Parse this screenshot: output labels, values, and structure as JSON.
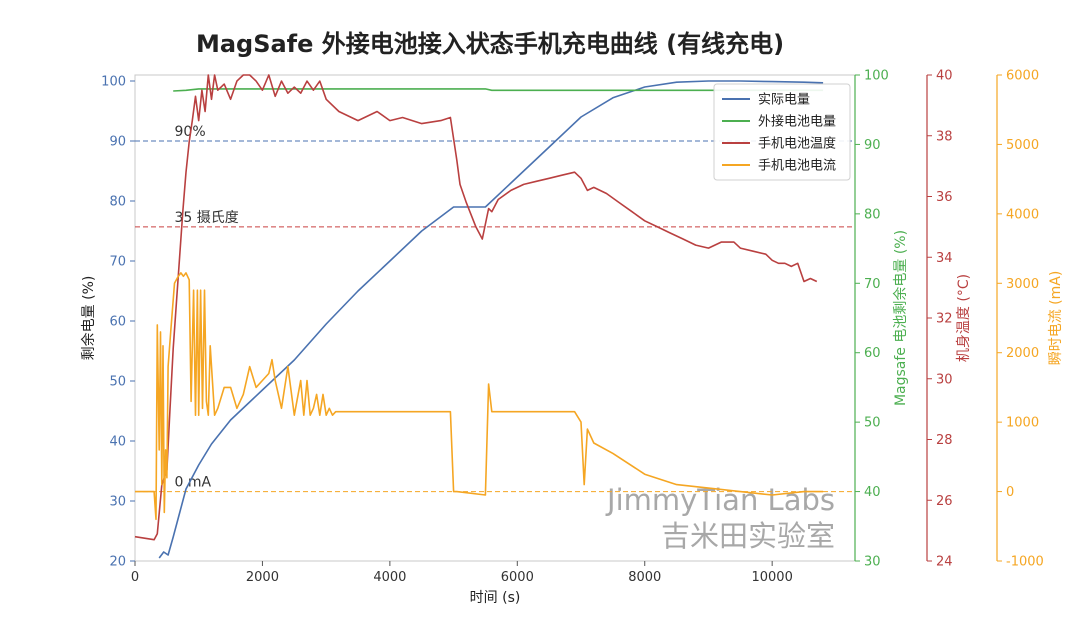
{
  "chart_data": {
    "type": "line",
    "title": "MagSafe 外接电池接入状态手机充电曲线 (有线充电)",
    "xlabel": "时间 (s)",
    "xlim": [
      0,
      11300
    ],
    "xticks": [
      0,
      2000,
      4000,
      6000,
      8000,
      10000
    ],
    "axes": {
      "left": {
        "label": "剩余电量 (%)",
        "lim": [
          20,
          101
        ],
        "ticks": [
          20,
          30,
          40,
          50,
          60,
          70,
          80,
          90,
          100
        ],
        "color": "#4a72b0"
      },
      "right1": {
        "label": "Magsafe 电池剩余电量 (%)",
        "lim": [
          30,
          100
        ],
        "ticks": [
          30,
          40,
          50,
          60,
          70,
          80,
          90,
          100
        ],
        "color": "#4caf50"
      },
      "right2": {
        "label": "机身温度 (°C)",
        "lim": [
          24,
          40
        ],
        "ticks": [
          24,
          26,
          28,
          30,
          32,
          34,
          36,
          38,
          40
        ],
        "color": "#b94040"
      },
      "right3": {
        "label": "瞬时电流 (mA)",
        "lim": [
          -1000,
          6000
        ],
        "ticks": [
          -1000,
          0,
          1000,
          2000,
          3000,
          4000,
          5000,
          6000
        ],
        "color": "#f5a623"
      }
    },
    "reference_lines": [
      {
        "label": "90%",
        "axis": "left",
        "value": 90,
        "color": "#4a72b0"
      },
      {
        "label": "35 摄氏度",
        "axis": "right2",
        "value": 35,
        "color": "#c94040"
      },
      {
        "label": "0 mA",
        "axis": "right3",
        "value": 0,
        "color": "#f5a623"
      }
    ],
    "legend_position": "top-right",
    "series": [
      {
        "name": "实际电量",
        "axis": "left",
        "color": "#4a72b0",
        "x": [
          380,
          450,
          520,
          600,
          700,
          800,
          1000,
          1200,
          1500,
          2000,
          2500,
          3000,
          3500,
          4000,
          4500,
          5000,
          5500,
          6000,
          6500,
          7000,
          7500,
          8000,
          8500,
          9000,
          9500,
          10000,
          10500,
          10800
        ],
        "y": [
          20.5,
          21.5,
          21,
          24,
          28,
          32,
          36,
          39.5,
          43.5,
          48.5,
          53.5,
          59.5,
          65,
          70,
          75,
          79,
          79,
          84,
          89,
          94,
          97.2,
          99,
          99.8,
          100,
          100,
          99.9,
          99.8,
          99.7
        ]
      },
      {
        "name": "外接电池电量",
        "axis": "right1",
        "color": "#4caf50",
        "x": [
          600,
          800,
          1000,
          2000,
          4000,
          5500,
          5600,
          8000,
          10000,
          10800
        ],
        "y": [
          97.7,
          97.8,
          98,
          98,
          98,
          98,
          97.8,
          97.8,
          97.8,
          97.8
        ]
      },
      {
        "name": "手机电池温度",
        "axis": "right2",
        "color": "#b94040",
        "x": [
          0,
          300,
          350,
          420,
          500,
          550,
          600,
          650,
          700,
          750,
          800,
          850,
          900,
          950,
          1000,
          1050,
          1100,
          1150,
          1200,
          1250,
          1300,
          1400,
          1500,
          1600,
          1700,
          1800,
          1900,
          2000,
          2100,
          2200,
          2300,
          2400,
          2500,
          2600,
          2700,
          2800,
          2900,
          3000,
          3200,
          3500,
          3800,
          4000,
          4200,
          4500,
          4800,
          4950,
          5050,
          5100,
          5200,
          5350,
          5450,
          5550,
          5600,
          5700,
          5900,
          6100,
          6300,
          6500,
          6700,
          6900,
          7000,
          7100,
          7200,
          7400,
          7600,
          7800,
          8000,
          8200,
          8400,
          8600,
          8800,
          9000,
          9200,
          9400,
          9500,
          9700,
          9900,
          10000,
          10100,
          10200,
          10300,
          10400,
          10500,
          10600,
          10700
        ],
        "y": [
          24.8,
          24.7,
          24.9,
          26.5,
          27,
          29,
          31,
          32.5,
          34,
          35.5,
          36.8,
          37.8,
          38.5,
          39.3,
          38.5,
          39.5,
          38.8,
          40,
          39.2,
          40,
          39.5,
          39.7,
          39.2,
          39.8,
          40,
          40.2,
          39.8,
          39.5,
          40,
          39.3,
          39.8,
          39.4,
          39.6,
          39.4,
          39.8,
          39.5,
          39.8,
          39.2,
          38.8,
          38.5,
          38.8,
          38.5,
          38.6,
          38.4,
          38.5,
          38.6,
          37.2,
          36.4,
          35.8,
          35,
          34.6,
          35.6,
          35.5,
          35.9,
          36.2,
          36.4,
          36.5,
          36.6,
          36.7,
          36.8,
          36.6,
          36.2,
          36.3,
          36.1,
          35.8,
          35.5,
          35.2,
          35,
          34.8,
          34.6,
          34.4,
          34.3,
          34.5,
          34.5,
          34.3,
          34.2,
          34.1,
          33.9,
          33.8,
          33.8,
          33.7,
          33.8,
          33.2,
          33.3,
          33.2
        ]
      },
      {
        "name": "手机电池电流",
        "axis": "right3",
        "color": "#f5a623",
        "x": [
          0,
          300,
          330,
          350,
          380,
          400,
          420,
          440,
          460,
          480,
          500,
          520,
          560,
          620,
          680,
          720,
          760,
          800,
          850,
          880,
          920,
          950,
          980,
          1000,
          1030,
          1060,
          1090,
          1120,
          1150,
          1180,
          1250,
          1300,
          1400,
          1500,
          1600,
          1700,
          1800,
          1900,
          2000,
          2100,
          2150,
          2200,
          2300,
          2400,
          2500,
          2600,
          2650,
          2700,
          2750,
          2800,
          2850,
          2900,
          2950,
          3000,
          3050,
          3100,
          3150,
          3500,
          4000,
          4500,
          4950,
          5000,
          5050,
          5500,
          5550,
          5600,
          6000,
          6500,
          6900,
          7000,
          7050,
          7100,
          7200,
          7500,
          8000,
          8500,
          9000,
          9500,
          10000,
          10500,
          10800
        ],
        "y": [
          0,
          0,
          -400,
          2400,
          600,
          2300,
          100,
          2100,
          -300,
          600,
          200,
          1800,
          2300,
          3000,
          3100,
          3150,
          3100,
          3150,
          3050,
          1300,
          2900,
          1100,
          2900,
          1100,
          2900,
          1200,
          2900,
          1300,
          1100,
          2100,
          1100,
          1200,
          1500,
          1500,
          1200,
          1400,
          1800,
          1500,
          1600,
          1700,
          1900,
          1600,
          1200,
          1800,
          1100,
          1600,
          1100,
          1600,
          1100,
          1200,
          1400,
          1100,
          1400,
          1100,
          1200,
          1100,
          1150,
          1150,
          1150,
          1150,
          1150,
          0,
          0,
          -50,
          1550,
          1150,
          1150,
          1150,
          1150,
          1000,
          100,
          900,
          700,
          550,
          250,
          100,
          50,
          0,
          -50,
          0,
          0
        ]
      }
    ],
    "watermark": [
      "JimmyTian Labs",
      "吉米田实验室"
    ]
  }
}
